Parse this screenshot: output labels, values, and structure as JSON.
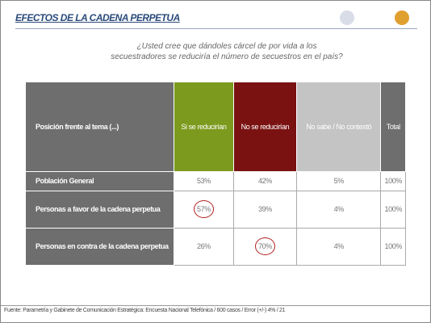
{
  "header": {
    "title": "EFECTOS DE LA CADENA PERPETUA"
  },
  "question": [
    "¿Usted cree que dándoles cárcel de por vida a los",
    "secuestradores se reduciría el número de secuestros en el país?"
  ],
  "table": {
    "columns": [
      "Posición frente al tema (...)",
      "Si se reducirían",
      "No se reducirían",
      "No sabe / No contestó",
      "Total"
    ],
    "rows": [
      [
        "Población General",
        "53%",
        "42%",
        "5%",
        "100%"
      ],
      [
        "Personas a favor de la cadena perpetua",
        "57%",
        "39%",
        "4%",
        "100%"
      ],
      [
        "Personas en contra de la cadena perpetua",
        "26%",
        "70%",
        "4%",
        "100%"
      ]
    ]
  },
  "footer": {
    "source": "Fuente: Parametría y Gabinete de Comunicación Estratégica: Encuesta Nacional Telefónica / 600 casos / Error (+/-) 4% / 21"
  }
}
